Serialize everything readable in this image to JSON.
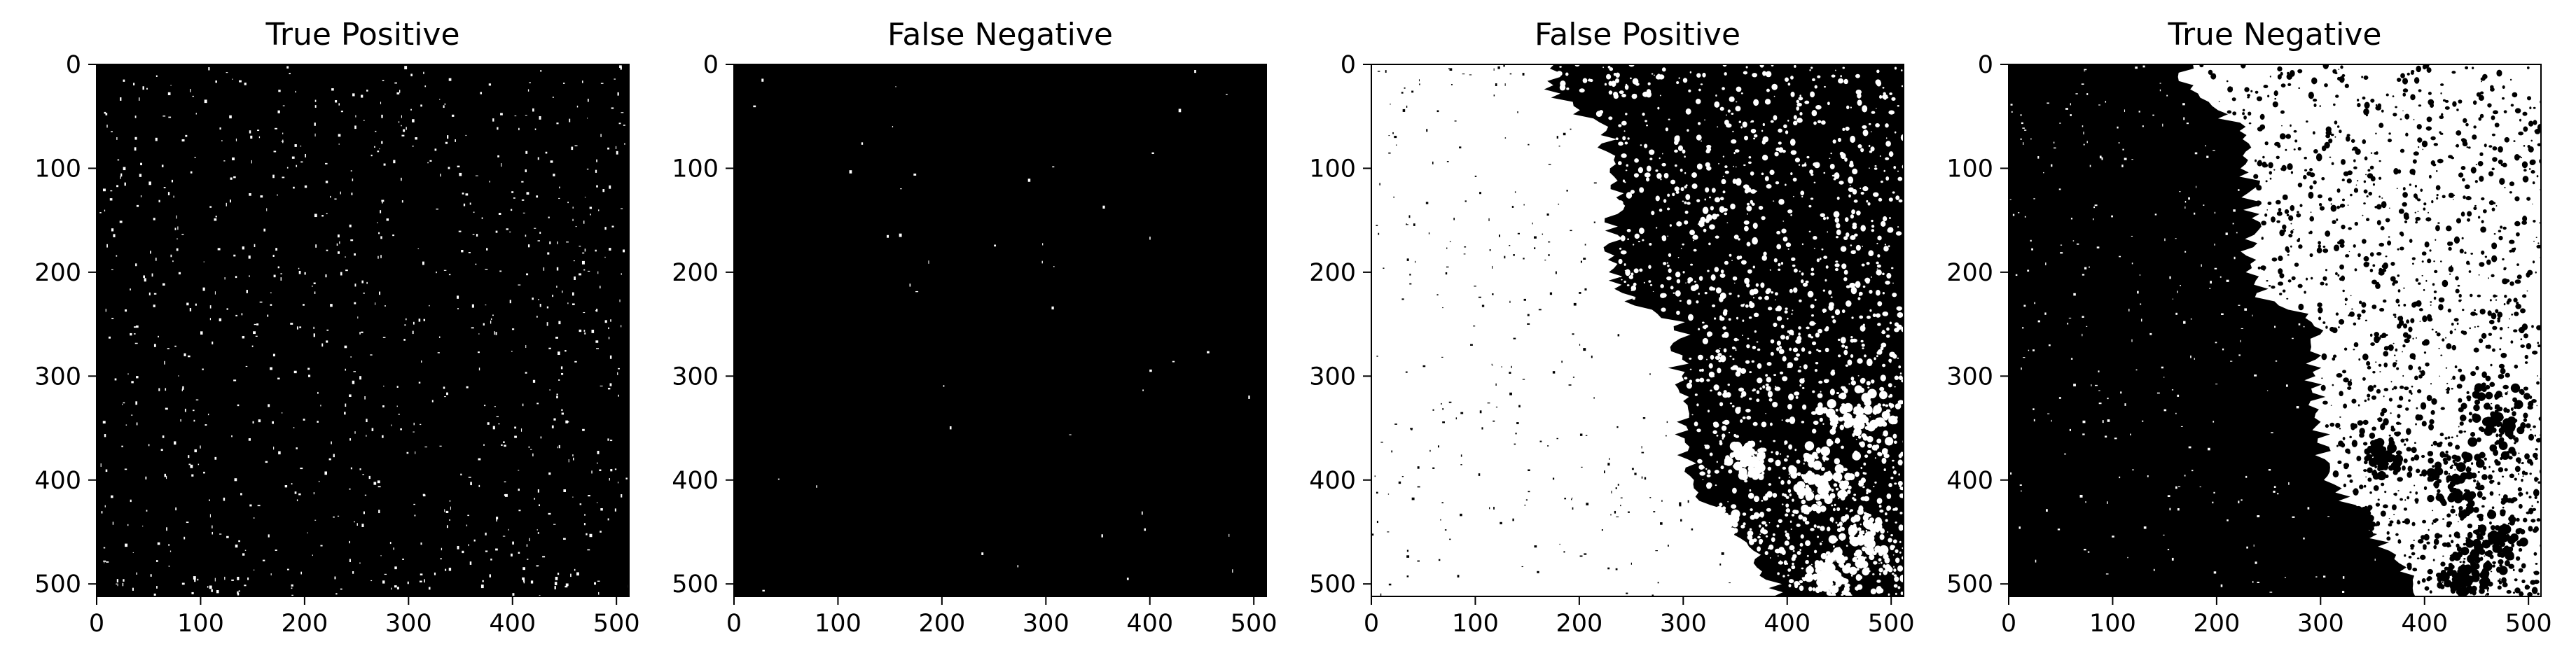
{
  "figure": {
    "background": "#ffffff",
    "frame_color": "#000000",
    "text_color": "#000000"
  },
  "chart_data": [
    {
      "type": "heatmap",
      "title": "True Positive",
      "xlabel": "",
      "ylabel": "",
      "xlim": [
        0,
        512
      ],
      "ylim": [
        512,
        0
      ],
      "x_ticks": [
        0,
        100,
        200,
        300,
        400,
        500
      ],
      "y_ticks": [
        0,
        100,
        200,
        300,
        400,
        500
      ],
      "cmap": [
        "#000000",
        "#ffffff"
      ],
      "dominant_value": 0,
      "foreground_pattern": "sparse",
      "foreground_fraction": 0.018
    },
    {
      "type": "heatmap",
      "title": "False Negative",
      "xlabel": "",
      "ylabel": "",
      "xlim": [
        0,
        512
      ],
      "ylim": [
        512,
        0
      ],
      "x_ticks": [
        0,
        100,
        200,
        300,
        400,
        500
      ],
      "y_ticks": [
        0,
        100,
        200,
        300,
        400,
        500
      ],
      "cmap": [
        "#000000",
        "#ffffff"
      ],
      "dominant_value": 0,
      "foreground_pattern": "very-sparse",
      "foreground_fraction": 0.001
    },
    {
      "type": "heatmap",
      "title": "False Positive",
      "xlabel": "",
      "ylabel": "",
      "xlim": [
        0,
        512
      ],
      "ylim": [
        512,
        0
      ],
      "x_ticks": [
        0,
        100,
        200,
        300,
        400,
        500
      ],
      "y_ticks": [
        0,
        100,
        200,
        300,
        400,
        500
      ],
      "cmap": [
        "#000000",
        "#ffffff"
      ],
      "foreground_pattern": "white-left-black-right",
      "boundary": [
        [
          0,
          170
        ],
        [
          30,
          175
        ],
        [
          60,
          225
        ],
        [
          100,
          230
        ],
        [
          150,
          235
        ],
        [
          200,
          230
        ],
        [
          225,
          245
        ],
        [
          250,
          300
        ],
        [
          300,
          295
        ],
        [
          350,
          300
        ],
        [
          390,
          305
        ],
        [
          430,
          330
        ],
        [
          470,
          370
        ],
        [
          512,
          395
        ]
      ]
    },
    {
      "type": "heatmap",
      "title": "True Negative",
      "xlabel": "",
      "ylabel": "",
      "xlim": [
        0,
        512
      ],
      "ylim": [
        512,
        0
      ],
      "x_ticks": [
        0,
        100,
        200,
        300,
        400,
        500
      ],
      "y_ticks": [
        0,
        100,
        200,
        300,
        400,
        500
      ],
      "cmap": [
        "#000000",
        "#ffffff"
      ],
      "foreground_pattern": "black-left-white-right",
      "boundary": [
        [
          0,
          170
        ],
        [
          30,
          175
        ],
        [
          60,
          225
        ],
        [
          100,
          230
        ],
        [
          150,
          235
        ],
        [
          200,
          230
        ],
        [
          225,
          245
        ],
        [
          250,
          300
        ],
        [
          300,
          295
        ],
        [
          350,
          300
        ],
        [
          390,
          305
        ],
        [
          430,
          330
        ],
        [
          470,
          370
        ],
        [
          512,
          395
        ]
      ]
    }
  ]
}
